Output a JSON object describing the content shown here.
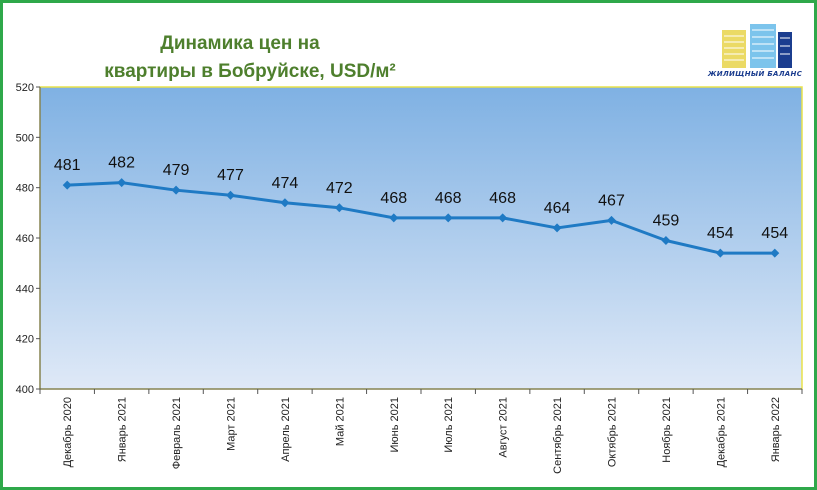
{
  "chart_data": {
    "type": "line",
    "title_line1": "Динамика цен на",
    "title_line2": "квартиры в Бобруйске, USD/м²",
    "categories": [
      "Декабрь 2020",
      "Январь 2021",
      "Февраль 2021",
      "Март 2021",
      "Апрель 2021",
      "Май 2021",
      "Июнь 2021",
      "Июль 2021",
      "Август 2021",
      "Сентябрь 2021",
      "Октябрь 2021",
      "Ноябрь 2021",
      "Декабрь 2021",
      "Январь 2022"
    ],
    "series": [
      {
        "values": [
          481,
          482,
          479,
          477,
          474,
          472,
          468,
          468,
          468,
          464,
          467,
          459,
          454,
          454
        ],
        "color": "#1f7ac4"
      }
    ],
    "ylim": [
      400,
      520
    ],
    "yticks": [
      400,
      420,
      440,
      460,
      480,
      500,
      520
    ],
    "grid": false,
    "legend": "none",
    "data_labels": true
  },
  "logo": {
    "text": "ЖИЛИЩНЫЙ БАЛАНС",
    "colors": [
      "#e8d44a",
      "#7cc4ec",
      "#1b3d8f"
    ]
  }
}
